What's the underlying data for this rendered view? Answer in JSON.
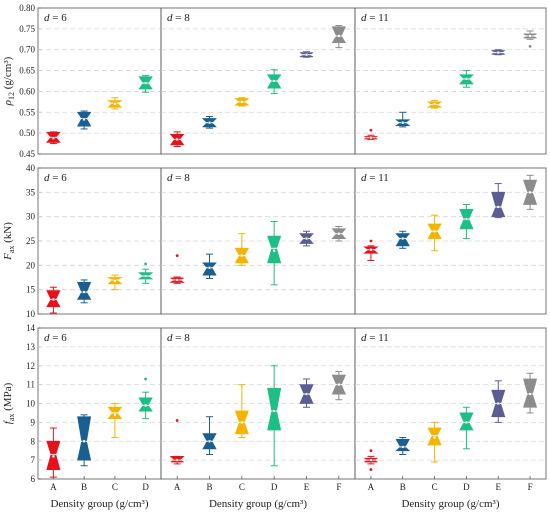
{
  "chart_data": {
    "type": "box",
    "xlabel": "Density group (g/cm³)",
    "categories": [
      "A",
      "B",
      "C",
      "D",
      "E",
      "F"
    ],
    "category_colors": {
      "A": "#e8111b",
      "B": "#1a5f92",
      "C": "#f4b400",
      "D": "#1dbf83",
      "E": "#5b5c96",
      "F": "#8c8c8c"
    },
    "grid": "dashed horizontal",
    "columns": [
      {
        "d": 6,
        "label": "d = 6",
        "categories": [
          "A",
          "B",
          "C",
          "D"
        ]
      },
      {
        "d": 8,
        "label": "d = 8",
        "categories": [
          "A",
          "B",
          "C",
          "D",
          "E",
          "F"
        ]
      },
      {
        "d": 11,
        "label": "d = 11",
        "categories": [
          "A",
          "B",
          "C",
          "D",
          "E",
          "F"
        ]
      }
    ],
    "rows": [
      {
        "key": "density",
        "ylabel_main": "ρ",
        "ylabel_sub": "12",
        "ylabel_unit": " (g/cm³)",
        "ylim": [
          0.45,
          0.8
        ],
        "yticks": [
          0.45,
          0.5,
          0.55,
          0.6,
          0.65,
          0.7,
          0.75,
          0.8
        ],
        "tick_labels": [
          "0.45",
          "0.50",
          "0.55",
          "0.60",
          "0.65",
          "0.70",
          "0.75",
          "0.80"
        ],
        "panels": [
          [
            {
              "cat": "A",
              "min": 0.475,
              "q1": 0.478,
              "median": 0.49,
              "q3": 0.502,
              "max": 0.503,
              "mean": 0.488,
              "outliers": []
            },
            {
              "cat": "B",
              "min": 0.51,
              "q1": 0.517,
              "median": 0.535,
              "q3": 0.55,
              "max": 0.553,
              "mean": 0.533,
              "outliers": []
            },
            {
              "cat": "C",
              "min": 0.558,
              "q1": 0.562,
              "median": 0.572,
              "q3": 0.578,
              "max": 0.585,
              "mean": 0.57,
              "outliers": []
            },
            {
              "cat": "D",
              "min": 0.598,
              "q1": 0.606,
              "median": 0.62,
              "q3": 0.635,
              "max": 0.638,
              "mean": 0.62,
              "outliers": []
            }
          ],
          [
            {
              "cat": "A",
              "min": 0.468,
              "q1": 0.472,
              "median": 0.485,
              "q3": 0.497,
              "max": 0.503,
              "mean": 0.485,
              "outliers": []
            },
            {
              "cat": "B",
              "min": 0.512,
              "q1": 0.515,
              "median": 0.525,
              "q3": 0.535,
              "max": 0.54,
              "mean": 0.525,
              "outliers": []
            },
            {
              "cat": "C",
              "min": 0.565,
              "q1": 0.567,
              "median": 0.575,
              "q3": 0.583,
              "max": 0.585,
              "mean": 0.575,
              "outliers": []
            },
            {
              "cat": "D",
              "min": 0.595,
              "q1": 0.608,
              "median": 0.625,
              "q3": 0.64,
              "max": 0.652,
              "mean": 0.625,
              "outliers": []
            },
            {
              "cat": "E",
              "min": 0.682,
              "q1": 0.683,
              "median": 0.688,
              "q3": 0.693,
              "max": 0.695,
              "mean": 0.688,
              "outliers": []
            },
            {
              "cat": "F",
              "min": 0.705,
              "q1": 0.717,
              "median": 0.733,
              "q3": 0.755,
              "max": 0.758,
              "mean": 0.733,
              "outliers": []
            }
          ],
          [
            {
              "cat": "A",
              "min": 0.485,
              "q1": 0.486,
              "median": 0.489,
              "q3": 0.492,
              "max": 0.495,
              "mean": 0.489,
              "outliers": [
                0.507
              ]
            },
            {
              "cat": "B",
              "min": 0.515,
              "q1": 0.518,
              "median": 0.525,
              "q3": 0.532,
              "max": 0.55,
              "mean": 0.525,
              "outliers": []
            },
            {
              "cat": "C",
              "min": 0.56,
              "q1": 0.562,
              "median": 0.568,
              "q3": 0.575,
              "max": 0.578,
              "mean": 0.57,
              "outliers": []
            },
            {
              "cat": "D",
              "min": 0.61,
              "q1": 0.618,
              "median": 0.63,
              "q3": 0.64,
              "max": 0.65,
              "mean": 0.63,
              "outliers": []
            },
            {
              "cat": "E",
              "min": 0.688,
              "q1": 0.689,
              "median": 0.693,
              "q3": 0.698,
              "max": 0.7,
              "mean": 0.693,
              "outliers": []
            },
            {
              "cat": "F",
              "min": 0.725,
              "q1": 0.728,
              "median": 0.733,
              "q3": 0.738,
              "max": 0.745,
              "mean": 0.733,
              "outliers": [
                0.708
              ]
            }
          ]
        ]
      },
      {
        "key": "force",
        "ylabel_main": "F",
        "ylabel_sub": "ax",
        "ylabel_unit": " (kN)",
        "ylim": [
          10,
          40
        ],
        "yticks": [
          10,
          15,
          20,
          25,
          30,
          35,
          40
        ],
        "tick_labels": [
          "10",
          "15",
          "20",
          "25",
          "30",
          "35",
          "40"
        ],
        "panels": [
          [
            {
              "cat": "A",
              "min": 10.2,
              "q1": 11.5,
              "median": 13.0,
              "q3": 14.8,
              "max": 15.5,
              "mean": 13.0,
              "outliers": []
            },
            {
              "cat": "B",
              "min": 12.3,
              "q1": 13.0,
              "median": 14.5,
              "q3": 16.5,
              "max": 17.0,
              "mean": 14.5,
              "outliers": []
            },
            {
              "cat": "C",
              "min": 15.0,
              "q1": 16.2,
              "median": 17.0,
              "q3": 17.5,
              "max": 18.0,
              "mean": 16.8,
              "outliers": []
            },
            {
              "cat": "D",
              "min": 16.3,
              "q1": 17.2,
              "median": 17.8,
              "q3": 18.5,
              "max": 19.2,
              "mean": 17.8,
              "outliers": [
                20.3
              ]
            }
          ],
          [
            {
              "cat": "A",
              "min": 16.3,
              "q1": 16.5,
              "median": 17.0,
              "q3": 17.4,
              "max": 17.6,
              "mean": 17.0,
              "outliers": [
                22.0
              ]
            },
            {
              "cat": "B",
              "min": 17.3,
              "q1": 18.0,
              "median": 19.5,
              "q3": 20.5,
              "max": 22.3,
              "mean": 19.5,
              "outliers": []
            },
            {
              "cat": "C",
              "min": 20.0,
              "q1": 20.5,
              "median": 22.0,
              "q3": 23.5,
              "max": 26.5,
              "mean": 22.0,
              "outliers": []
            },
            {
              "cat": "D",
              "min": 16.0,
              "q1": 20.5,
              "median": 23.5,
              "q3": 26.0,
              "max": 29.0,
              "mean": 23.0,
              "outliers": []
            },
            {
              "cat": "E",
              "min": 24.0,
              "q1": 24.5,
              "median": 25.5,
              "q3": 26.5,
              "max": 27.0,
              "mean": 25.5,
              "outliers": []
            },
            {
              "cat": "F",
              "min": 25.0,
              "q1": 25.5,
              "median": 26.5,
              "q3": 27.5,
              "max": 28.0,
              "mean": 26.5,
              "outliers": []
            }
          ],
          [
            {
              "cat": "A",
              "min": 21.0,
              "q1": 22.5,
              "median": 23.2,
              "q3": 23.8,
              "max": 24.0,
              "mean": 23.2,
              "outliers": [
                25.0
              ]
            },
            {
              "cat": "B",
              "min": 23.5,
              "q1": 24.0,
              "median": 25.5,
              "q3": 26.5,
              "max": 27.0,
              "mean": 25.5,
              "outliers": []
            },
            {
              "cat": "C",
              "min": 23.0,
              "q1": 25.5,
              "median": 27.0,
              "q3": 28.5,
              "max": 30.3,
              "mean": 27.0,
              "outliers": []
            },
            {
              "cat": "D",
              "min": 25.5,
              "q1": 27.5,
              "median": 29.5,
              "q3": 31.5,
              "max": 32.5,
              "mean": 29.5,
              "outliers": []
            },
            {
              "cat": "E",
              "min": 29.8,
              "q1": 30.0,
              "median": 32.0,
              "q3": 35.0,
              "max": 36.8,
              "mean": 32.0,
              "outliers": []
            },
            {
              "cat": "F",
              "min": 31.5,
              "q1": 32.5,
              "median": 35.0,
              "q3": 37.5,
              "max": 38.5,
              "mean": 35.0,
              "outliers": []
            }
          ]
        ]
      },
      {
        "key": "strength",
        "ylabel_main": "f",
        "ylabel_sub": "ax",
        "ylabel_unit": " (MPa)",
        "ylim": [
          6,
          14
        ],
        "yticks": [
          6,
          7,
          8,
          9,
          10,
          11,
          12,
          13,
          14
        ],
        "tick_labels": [
          "6",
          "7",
          "8",
          "9",
          "10",
          "11",
          "12",
          "13",
          "14"
        ],
        "panels": [
          [
            {
              "cat": "A",
              "min": 6.1,
              "q1": 6.5,
              "median": 7.3,
              "q3": 8.0,
              "max": 8.7,
              "mean": 7.2,
              "outliers": []
            },
            {
              "cat": "B",
              "min": 6.7,
              "q1": 7.0,
              "median": 8.0,
              "q3": 9.3,
              "max": 9.4,
              "mean": 8.0,
              "outliers": []
            },
            {
              "cat": "C",
              "min": 8.2,
              "q1": 9.2,
              "median": 9.5,
              "q3": 9.8,
              "max": 10.0,
              "mean": 9.4,
              "outliers": []
            },
            {
              "cat": "D",
              "min": 9.2,
              "q1": 9.6,
              "median": 9.9,
              "q3": 10.3,
              "max": 10.6,
              "mean": 9.9,
              "outliers": [
                11.3
              ]
            }
          ],
          [
            {
              "cat": "A",
              "min": 6.8,
              "q1": 6.9,
              "median": 7.0,
              "q3": 7.2,
              "max": 7.2,
              "mean": 7.0,
              "outliers": [
                9.1
              ]
            },
            {
              "cat": "B",
              "min": 7.3,
              "q1": 7.6,
              "median": 8.0,
              "q3": 8.4,
              "max": 9.3,
              "mean": 8.0,
              "outliers": []
            },
            {
              "cat": "C",
              "min": 8.2,
              "q1": 8.4,
              "median": 9.0,
              "q3": 9.6,
              "max": 11.0,
              "mean": 9.0,
              "outliers": []
            },
            {
              "cat": "D",
              "min": 6.7,
              "q1": 8.6,
              "median": 9.6,
              "q3": 10.8,
              "max": 12.0,
              "mean": 9.6,
              "outliers": []
            },
            {
              "cat": "E",
              "min": 9.8,
              "q1": 10.0,
              "median": 10.5,
              "q3": 11.0,
              "max": 11.3,
              "mean": 10.5,
              "outliers": []
            },
            {
              "cat": "F",
              "min": 10.2,
              "q1": 10.5,
              "median": 11.0,
              "q3": 11.5,
              "max": 11.7,
              "mean": 11.0,
              "outliers": []
            }
          ],
          [
            {
              "cat": "A",
              "min": 6.8,
              "q1": 6.9,
              "median": 7.0,
              "q3": 7.1,
              "max": 7.2,
              "mean": 7.0,
              "outliers": [
                6.5,
                7.5
              ]
            },
            {
              "cat": "B",
              "min": 7.3,
              "q1": 7.5,
              "median": 7.7,
              "q3": 8.1,
              "max": 8.2,
              "mean": 7.7,
              "outliers": []
            },
            {
              "cat": "C",
              "min": 6.9,
              "q1": 7.8,
              "median": 8.3,
              "q3": 8.7,
              "max": 9.0,
              "mean": 8.2,
              "outliers": []
            },
            {
              "cat": "D",
              "min": 7.6,
              "q1": 8.6,
              "median": 9.0,
              "q3": 9.5,
              "max": 9.8,
              "mean": 9.0,
              "outliers": []
            },
            {
              "cat": "E",
              "min": 9.0,
              "q1": 9.3,
              "median": 10.0,
              "q3": 10.7,
              "max": 11.2,
              "mean": 10.0,
              "outliers": []
            },
            {
              "cat": "F",
              "min": 9.5,
              "q1": 9.8,
              "median": 10.5,
              "q3": 11.3,
              "max": 11.6,
              "mean": 10.5,
              "outliers": []
            }
          ]
        ]
      }
    ]
  }
}
